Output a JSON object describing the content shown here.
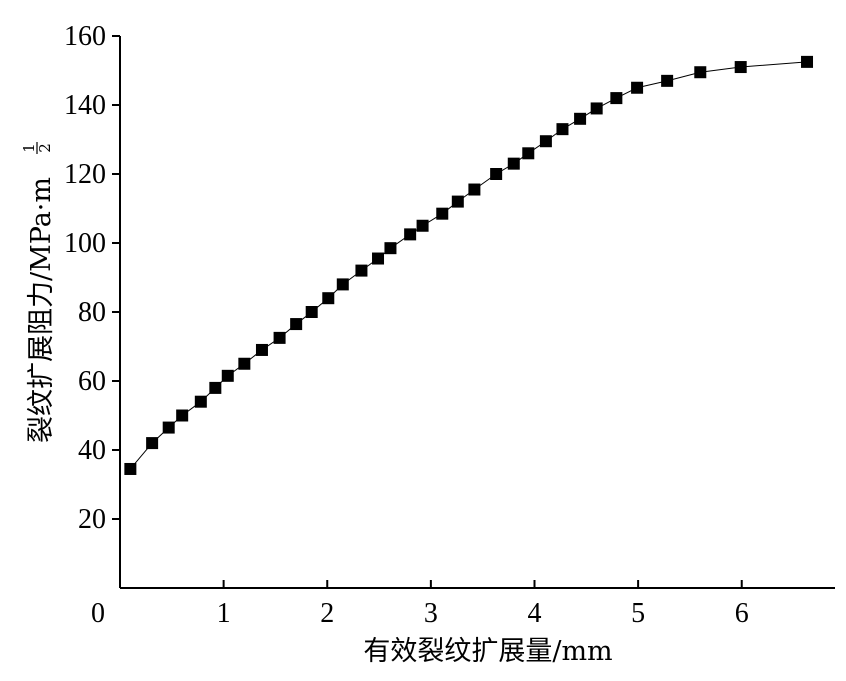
{
  "chart_data": {
    "type": "scatter",
    "title": "",
    "xlabel": "有效裂纹扩展量/mm",
    "ylabel": "裂纹扩展阻力/MPa·m",
    "ylabel_exponent_num": "1",
    "ylabel_exponent_den": "2",
    "xlim": [
      0,
      6.9
    ],
    "ylim": [
      0,
      160
    ],
    "x_ticks": [
      0,
      1,
      2,
      3,
      4,
      5,
      6
    ],
    "y_ticks": [
      20,
      40,
      60,
      80,
      100,
      120,
      140,
      160
    ],
    "grid": false,
    "legend": "none",
    "marker": "square",
    "connect_points": true,
    "series": [
      {
        "x": [
          0.1,
          0.31,
          0.47,
          0.6,
          0.78,
          0.92,
          1.04,
          1.2,
          1.37,
          1.54,
          1.7,
          1.85,
          2.01,
          2.15,
          2.33,
          2.49,
          2.61,
          2.8,
          2.92,
          3.11,
          3.26,
          3.42,
          3.63,
          3.8,
          3.94,
          4.11,
          4.27,
          4.44,
          4.6,
          4.79,
          4.99,
          5.28,
          5.6,
          5.99,
          6.63
        ],
        "y": [
          34.5,
          42,
          46.5,
          50,
          54,
          58,
          61.5,
          65,
          69,
          72.5,
          76.5,
          80,
          84,
          88,
          92,
          95.5,
          98.5,
          102.5,
          105,
          108.5,
          112,
          115.5,
          120,
          123,
          126,
          129.5,
          133,
          136,
          139,
          142,
          145,
          147,
          149.5,
          151,
          152.5
        ]
      }
    ]
  }
}
